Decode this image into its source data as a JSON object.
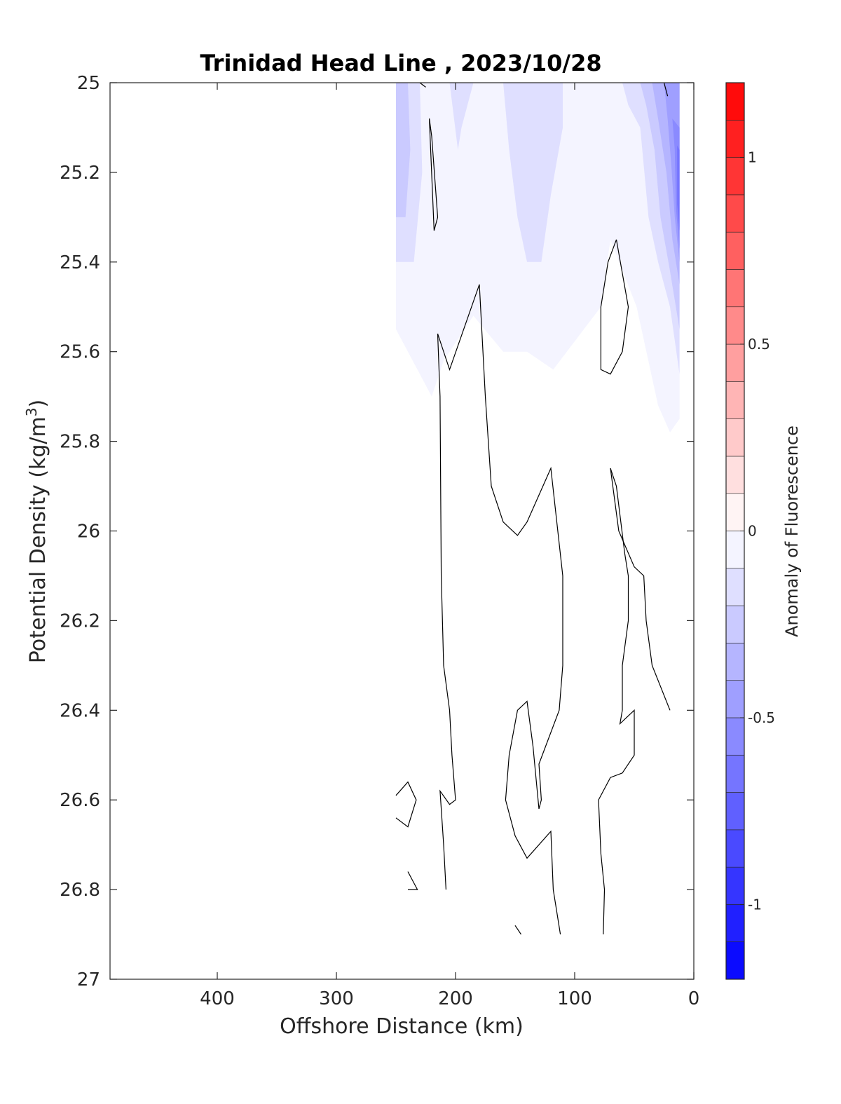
{
  "chart_data": {
    "type": "contour",
    "title": "Trinidad Head Line , 2023/10/28",
    "xlabel": "Offshore Distance (km)",
    "ylabel_main": "Potential Density (kg/m",
    "ylabel_sup": "3",
    "ylabel_close": ")",
    "colorbar_label": "Anomaly of Fluorescence",
    "xlim": [
      490,
      0
    ],
    "ylim": [
      25,
      27
    ],
    "x_reversed": true,
    "y_reversed": true,
    "x_ticks": [
      400,
      300,
      200,
      100,
      0
    ],
    "x_tick_labels": [
      "400",
      "300",
      "200",
      "100",
      "0"
    ],
    "y_ticks": [
      25,
      25.2,
      25.4,
      25.6,
      25.8,
      26,
      26.2,
      26.4,
      26.6,
      26.8,
      27
    ],
    "y_tick_labels": [
      "25",
      "25.2",
      "25.4",
      "25.6",
      "25.8",
      "26",
      "26.2",
      "26.4",
      "26.6",
      "26.8",
      "27"
    ],
    "colorbar": {
      "range": [
        -1.2,
        1.2
      ],
      "levels_step": 0.1,
      "tick_values": [
        1,
        0.5,
        0,
        -0.5,
        -1
      ],
      "tick_labels": [
        "1",
        "0.5",
        "0",
        "-0.5",
        "-1"
      ],
      "negative_color": "#0000ff",
      "positive_color": "#ff0000",
      "zero_color": "#ffffff"
    },
    "filled_regions": [
      {
        "level": -0.1,
        "points": [
          [
            250,
            25
          ],
          [
            12,
            25
          ],
          [
            12,
            25.75
          ],
          [
            20,
            25.78
          ],
          [
            30,
            25.72
          ],
          [
            48,
            25.5
          ],
          [
            70,
            25.35
          ],
          [
            78,
            25.5
          ],
          [
            118,
            25.64
          ],
          [
            140,
            25.6
          ],
          [
            160,
            25.6
          ],
          [
            185,
            25.52
          ],
          [
            210,
            25.62
          ],
          [
            220,
            25.7
          ],
          [
            250,
            25.55
          ]
        ]
      },
      {
        "level": -0.2,
        "points": [
          [
            250,
            25
          ],
          [
            230,
            25
          ],
          [
            228,
            25.2
          ],
          [
            235,
            25.4
          ],
          [
            250,
            25.4
          ]
        ]
      },
      {
        "level": -0.2,
        "points": [
          [
            205,
            25
          ],
          [
            185,
            25
          ],
          [
            195,
            25.1
          ],
          [
            198,
            25.15
          ]
        ]
      },
      {
        "level": -0.2,
        "points": [
          [
            160,
            25
          ],
          [
            110,
            25
          ],
          [
            110,
            25.1
          ],
          [
            120,
            25.25
          ],
          [
            128,
            25.4
          ],
          [
            140,
            25.4
          ],
          [
            148,
            25.3
          ],
          [
            155,
            25.15
          ]
        ]
      },
      {
        "level": -0.2,
        "points": [
          [
            60,
            25
          ],
          [
            12,
            25
          ],
          [
            12,
            25.65
          ],
          [
            20,
            25.5
          ],
          [
            30,
            25.4
          ],
          [
            38,
            25.3
          ],
          [
            45,
            25.1
          ],
          [
            55,
            25.05
          ]
        ]
      },
      {
        "level": -0.3,
        "points": [
          [
            250,
            25
          ],
          [
            240,
            25
          ],
          [
            238,
            25.15
          ],
          [
            242,
            25.3
          ],
          [
            250,
            25.3
          ]
        ]
      },
      {
        "level": -0.3,
        "points": [
          [
            45,
            25
          ],
          [
            12,
            25
          ],
          [
            12,
            25.55
          ],
          [
            20,
            25.42
          ],
          [
            28,
            25.3
          ],
          [
            33,
            25.15
          ],
          [
            40,
            25.05
          ]
        ]
      },
      {
        "level": -0.4,
        "points": [
          [
            35,
            25
          ],
          [
            12,
            25
          ],
          [
            12,
            25.45
          ],
          [
            18,
            25.35
          ],
          [
            23,
            25.2
          ],
          [
            30,
            25.08
          ]
        ]
      },
      {
        "level": -0.5,
        "points": [
          [
            25,
            25
          ],
          [
            12,
            25
          ],
          [
            12,
            25.4
          ],
          [
            16,
            25.3
          ],
          [
            19,
            25.18
          ],
          [
            22,
            25.08
          ]
        ]
      },
      {
        "level": -0.6,
        "points": [
          [
            18,
            25.08
          ],
          [
            12,
            25.1
          ],
          [
            12,
            25.37
          ],
          [
            15,
            25.28
          ],
          [
            16,
            25.15
          ]
        ]
      },
      {
        "level": -0.7,
        "points": [
          [
            14,
            25.14
          ],
          [
            12,
            25.15
          ],
          [
            12,
            25.33
          ],
          [
            14,
            25.27
          ]
        ]
      }
    ],
    "zero_contours": [
      [
        [
          222,
          25.08
        ],
        [
          218,
          25.33
        ],
        [
          215,
          25.3
        ],
        [
          220,
          25.12
        ],
        [
          222,
          25.08
        ]
      ],
      [
        [
          230,
          25
        ],
        [
          225,
          25.01
        ]
      ],
      [
        [
          25,
          25
        ],
        [
          22,
          25.03
        ]
      ],
      [
        [
          215,
          25.56
        ],
        [
          205,
          25.64
        ],
        [
          180,
          25.45
        ],
        [
          175,
          25.7
        ],
        [
          170,
          25.9
        ],
        [
          160,
          25.98
        ],
        [
          148,
          26.01
        ],
        [
          140,
          25.98
        ],
        [
          120,
          25.86
        ],
        [
          110,
          26.1
        ],
        [
          110,
          26.3
        ],
        [
          113,
          26.4
        ],
        [
          130,
          26.52
        ],
        [
          128,
          26.6
        ],
        [
          130,
          26.62
        ],
        [
          135,
          26.48
        ],
        [
          140,
          26.38
        ],
        [
          148,
          26.4
        ],
        [
          155,
          26.5
        ],
        [
          158,
          26.6
        ],
        [
          150,
          26.68
        ],
        [
          140,
          26.73
        ],
        [
          120,
          26.67
        ],
        [
          118,
          26.8
        ],
        [
          112,
          26.9
        ]
      ],
      [
        [
          215,
          25.56
        ],
        [
          213,
          25.7
        ],
        [
          212,
          26.1
        ],
        [
          210,
          26.3
        ],
        [
          205,
          26.4
        ],
        [
          203,
          26.5
        ],
        [
          200,
          26.6
        ],
        [
          205,
          26.61
        ],
        [
          213,
          26.58
        ],
        [
          210,
          26.7
        ],
        [
          208,
          26.8
        ]
      ],
      [
        [
          250,
          26.59
        ],
        [
          240,
          26.56
        ],
        [
          233,
          26.6
        ],
        [
          240,
          26.66
        ],
        [
          250,
          26.64
        ]
      ],
      [
        [
          240,
          26.76
        ],
        [
          232,
          26.8
        ],
        [
          240,
          26.8
        ]
      ],
      [
        [
          150,
          26.88
        ],
        [
          145,
          26.9
        ]
      ],
      [
        [
          65,
          25.35
        ],
        [
          72,
          25.4
        ],
        [
          78,
          25.5
        ],
        [
          78,
          25.64
        ],
        [
          70,
          25.65
        ],
        [
          60,
          25.6
        ],
        [
          55,
          25.5
        ],
        [
          65,
          25.35
        ]
      ],
      [
        [
          70,
          25.86
        ],
        [
          65,
          25.9
        ],
        [
          58,
          26.05
        ],
        [
          55,
          26.1
        ],
        [
          55,
          26.2
        ],
        [
          60,
          26.3
        ],
        [
          60,
          26.4
        ],
        [
          62,
          26.43
        ],
        [
          50,
          26.4
        ],
        [
          50,
          26.5
        ],
        [
          60,
          26.54
        ],
        [
          70,
          26.55
        ],
        [
          80,
          26.6
        ],
        [
          78,
          26.72
        ],
        [
          75,
          26.8
        ],
        [
          76,
          26.9
        ]
      ],
      [
        [
          70,
          25.86
        ],
        [
          63,
          26
        ],
        [
          50,
          26.08
        ],
        [
          42,
          26.1
        ],
        [
          40,
          26.2
        ],
        [
          35,
          26.3
        ],
        [
          20,
          26.4
        ]
      ]
    ]
  }
}
